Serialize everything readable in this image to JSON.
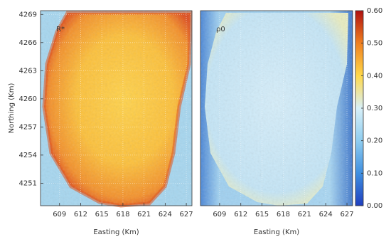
{
  "chart_data": [
    {
      "type": "heatmap",
      "label": "R*",
      "xlabel": "Easting (Km)",
      "ylabel": "Northing (Km)",
      "xlim": [
        606.3,
        627.8
      ],
      "xticks": [
        609,
        612,
        615,
        618,
        621,
        624,
        627
      ],
      "ylim": [
        4248.6,
        4269.4
      ],
      "yticks": [
        4251,
        4254,
        4257,
        4260,
        4263,
        4266,
        4269
      ]
    },
    {
      "type": "heatmap",
      "label": "ρ0",
      "xlabel": "Easting (Km)",
      "xlim": [
        606.3,
        627.8
      ],
      "xticks": [
        609,
        612,
        615,
        618,
        621,
        624,
        627
      ],
      "ylim": [
        4248.6,
        4269.4
      ],
      "colorbar": {
        "lim": [
          0,
          0.6
        ],
        "ticks": [
          {
            "value": 0,
            "label": "0.00"
          },
          {
            "value": 0.1,
            "label": "0.10"
          },
          {
            "value": 0.2,
            "label": "0.20"
          },
          {
            "value": 0.3,
            "label": "0.30"
          },
          {
            "value": 0.4,
            "label": "0.40"
          },
          {
            "value": 0.5,
            "label": "0.50"
          },
          {
            "value": 0.6,
            "label": "0.60"
          }
        ],
        "colors": [
          "#1f3fbf",
          "#3f8fe0",
          "#8fcdf0",
          "#d8f0f8",
          "#ffd84a",
          "#f08020",
          "#b01010"
        ]
      }
    }
  ]
}
